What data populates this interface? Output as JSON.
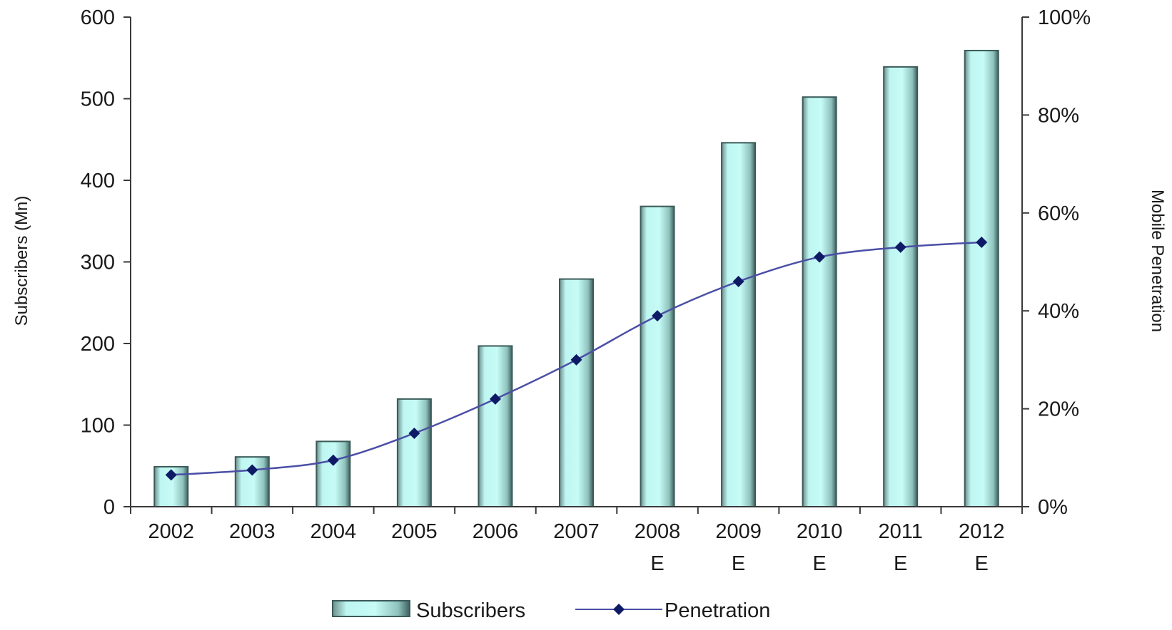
{
  "chart_data": {
    "type": "bar",
    "categories": [
      "2002",
      "2003",
      "2004",
      "2005",
      "2006",
      "2007",
      "2008\nE",
      "2009\nE",
      "2010\nE",
      "2011\nE",
      "2012\nE"
    ],
    "series": [
      {
        "name": "Subscribers",
        "type": "bar",
        "axis": "left",
        "values": [
          49,
          61,
          80,
          132,
          197,
          279,
          368,
          446,
          502,
          539,
          559
        ]
      },
      {
        "name": "Penetration",
        "type": "line",
        "axis": "right",
        "values": [
          6.5,
          7.5,
          9.5,
          15,
          22,
          30,
          39,
          46,
          51,
          53,
          54
        ]
      }
    ],
    "y_left": {
      "label": "Subscribers (Mn)",
      "lim": [
        0,
        600
      ],
      "ticks": [
        "0",
        "100",
        "200",
        "300",
        "400",
        "500",
        "600"
      ]
    },
    "y_right": {
      "label": "Mobile Penetration",
      "lim": [
        0,
        100
      ],
      "ticks": [
        "0%",
        "20%",
        "40%",
        "60%",
        "80%",
        "100%"
      ]
    },
    "legend": {
      "position": "bottom",
      "items": [
        "Subscribers",
        "Penetration"
      ]
    },
    "grid": false,
    "colors": {
      "bar_fill": "#b5f4ee",
      "bar_stroke": "#3a5a58",
      "line": "#4b4fa6",
      "marker": "#0f1a66"
    }
  }
}
